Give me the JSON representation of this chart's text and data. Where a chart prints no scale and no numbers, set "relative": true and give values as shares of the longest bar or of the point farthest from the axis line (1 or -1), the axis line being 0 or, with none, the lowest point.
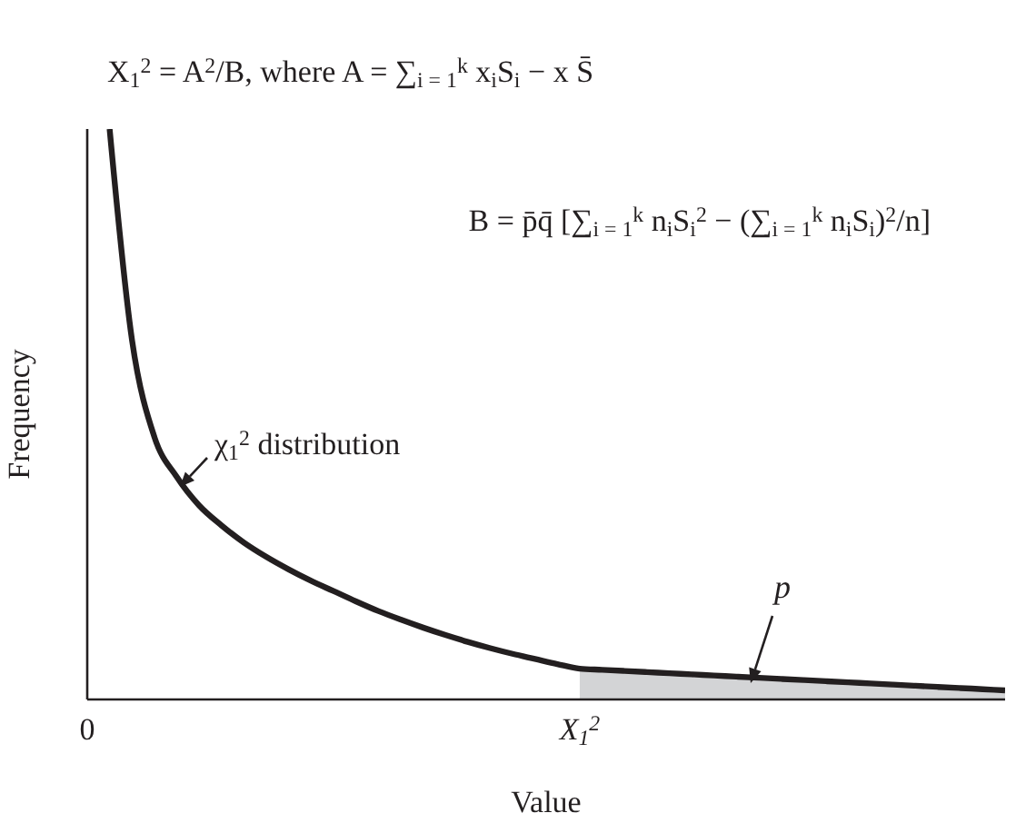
{
  "chart_data": {
    "type": "line",
    "xlabel": "Value",
    "ylabel": "Frequency",
    "relative": true,
    "marker": "none",
    "line_style": "solid",
    "annotations": [
      "X$_{1}$$^{2}$ = A$^{2}$/B, where A = ∑$_{i = 1}$$^{k}$ x$_{i}$S$_{i}$ − x S̄",
      "B = p̄q̄ [∑$_{i = 1}$$^{k}$ n$_{i}$S$_{i}$$^{2}$ − (∑$_{i = 1}$$^{k}$ n$_{i}$S$_{i}$)$^{2}$/n]",
      "χ$_{1}$$^{2}$ distribution",
      "p"
    ],
    "categories": [
      "0",
      null,
      null,
      null,
      null,
      null,
      null,
      null,
      null,
      null,
      null,
      null,
      null,
      null,
      null,
      null,
      null,
      null,
      null,
      null,
      null,
      null,
      "X$_{1}$$^{2}$",
      null,
      null,
      null,
      null,
      null,
      null,
      null,
      null,
      null,
      null,
      null,
      null,
      null,
      null,
      null,
      null,
      null,
      null,
      null
    ],
    "series": [
      {
        "type": "area",
        "color": "#d3d4d6",
        "values": [
          null,
          null,
          null,
          null,
          null,
          null,
          null,
          null,
          null,
          null,
          null,
          null,
          null,
          null,
          null,
          null,
          null,
          null,
          null,
          null,
          null,
          null,
          0.054,
          0.052,
          0.05,
          0.048,
          0.046,
          0.044,
          0.042,
          0.04,
          0.038,
          0.036,
          0.034,
          0.032,
          0.03,
          0.028,
          0.026,
          0.024,
          0.022,
          0.02,
          0.018,
          0.016
        ]
      },
      {
        "color": "#231f20",
        "values": [
          null,
          1.0,
          0.63,
          0.46,
          0.39,
          0.34,
          0.305,
          0.275,
          0.25,
          0.228,
          0.208,
          0.19,
          0.172,
          0.155,
          0.14,
          0.126,
          0.113,
          0.101,
          0.09,
          0.08,
          0.071,
          0.062,
          0.054,
          0.052,
          0.05,
          0.048,
          0.046,
          0.044,
          0.042,
          0.04,
          0.038,
          0.036,
          0.034,
          0.032,
          0.03,
          0.028,
          0.026,
          0.024,
          0.022,
          0.02,
          0.018,
          0.016
        ]
      }
    ]
  }
}
